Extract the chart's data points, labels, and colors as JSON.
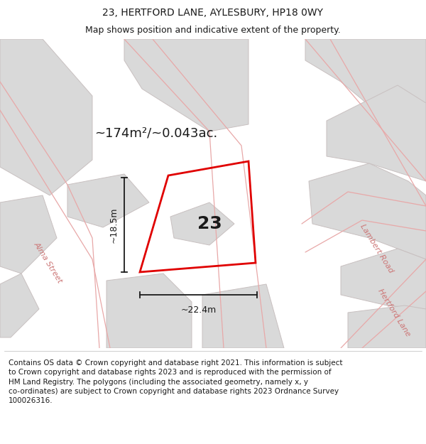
{
  "title": "23, HERTFORD LANE, AYLESBURY, HP18 0WY",
  "subtitle": "Map shows position and indicative extent of the property.",
  "area_text": "~174m²/~0.043ac.",
  "dimension_w": "~22.4m",
  "dimension_h": "~18.5m",
  "number_label": "23",
  "footer_text": "Contains OS data © Crown copyright and database right 2021. This information is subject\nto Crown copyright and database rights 2023 and is reproduced with the permission of\nHM Land Registry. The polygons (including the associated geometry, namely x, y\nco-ordinates) are subject to Crown copyright and database rights 2023 Ordnance Survey\n100026316.",
  "bg_color": "#f8f8f8",
  "map_bg": "#f7f5f5",
  "white": "#ffffff",
  "bld_fill": "#d9d9d9",
  "bld_edge": "#c8c0c0",
  "red_plot": "#e00000",
  "road_pink": "#e8a8a8",
  "label_pink": "#cc7777",
  "black": "#1a1a1a",
  "title_fs": 10,
  "subtitle_fs": 9,
  "area_fs": 13,
  "number_fs": 18,
  "street_fs": 8,
  "footer_fs": 7.5,
  "dim_fs": 9
}
